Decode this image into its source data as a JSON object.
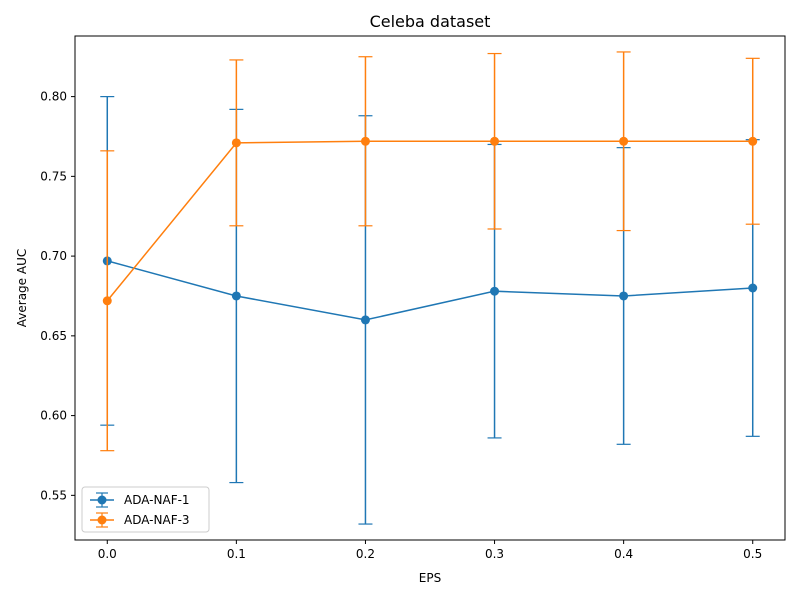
{
  "chart_data": {
    "type": "line",
    "title": "Celeba dataset",
    "xlabel": "EPS",
    "ylabel": "Average AUC",
    "x": [
      0.0,
      0.1,
      0.2,
      0.3,
      0.4,
      0.5
    ],
    "xticks": [
      "0.0",
      "0.1",
      "0.2",
      "0.3",
      "0.4",
      "0.5"
    ],
    "yticks": [
      "0.55",
      "0.60",
      "0.65",
      "0.70",
      "0.75",
      "0.80"
    ],
    "ytick_values": [
      0.55,
      0.6,
      0.65,
      0.7,
      0.75,
      0.8
    ],
    "xlim": [
      -0.025,
      0.525
    ],
    "ylim": [
      0.522,
      0.838
    ],
    "grid": false,
    "legend_position": "lower-left",
    "series": [
      {
        "name": "ADA-NAF-1",
        "color": "#1f77b4",
        "values": [
          0.697,
          0.675,
          0.66,
          0.678,
          0.675,
          0.68
        ],
        "error": [
          0.103,
          0.117,
          0.128,
          0.092,
          0.093,
          0.093
        ]
      },
      {
        "name": "ADA-NAF-3",
        "color": "#ff7f0e",
        "values": [
          0.672,
          0.771,
          0.772,
          0.772,
          0.772,
          0.772
        ],
        "error": [
          0.094,
          0.052,
          0.053,
          0.055,
          0.056,
          0.052
        ]
      }
    ]
  }
}
